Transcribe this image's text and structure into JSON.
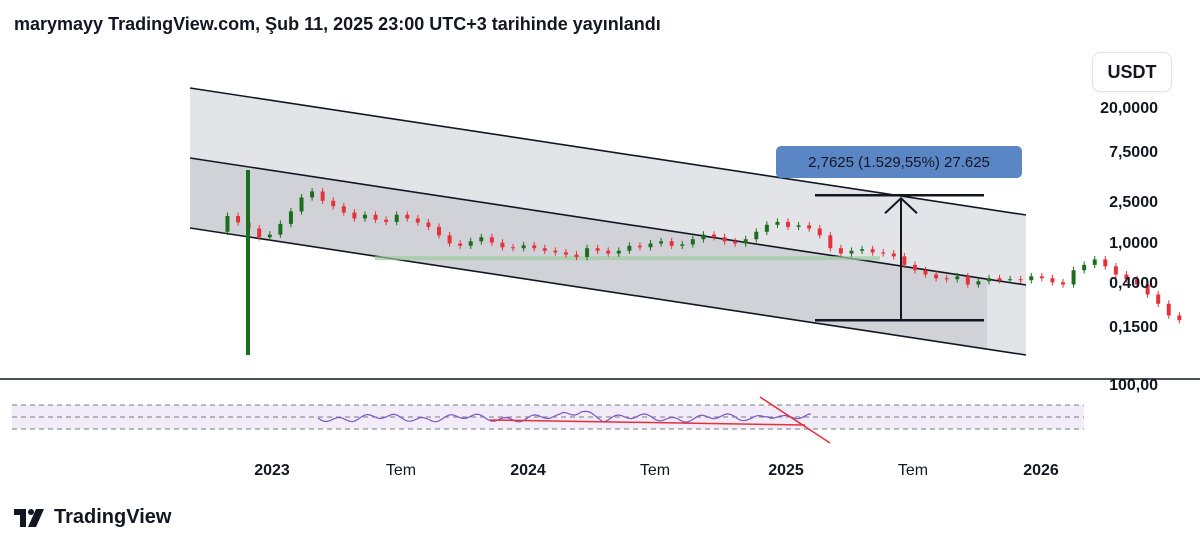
{
  "header": {
    "title": "marymayy TradingView.com, Şub 11, 2025 23:00 UTC+3 tarihinde yayınlandı"
  },
  "currency": "USDT",
  "chart_data": {
    "type": "candlestick",
    "scale": "log",
    "y_ticks": [
      "20,0000",
      "7,5000",
      "2,5000",
      "1,0000",
      "0,4000",
      "0,1500"
    ],
    "y_tick_values": [
      20,
      7.5,
      2.5,
      1.0,
      0.4,
      0.15
    ],
    "rsi_tick": "100,00",
    "x_ticks": [
      {
        "label": "2023",
        "kind": "year"
      },
      {
        "label": "Tem",
        "kind": "month"
      },
      {
        "label": "2024",
        "kind": "year"
      },
      {
        "label": "Tem",
        "kind": "month"
      },
      {
        "label": "2025",
        "kind": "year"
      },
      {
        "label": "Tem",
        "kind": "month"
      },
      {
        "label": "2026",
        "kind": "year"
      }
    ],
    "measure": {
      "label": "2,7625 (1.529,55%) 27.625",
      "from_price": 0.18,
      "to_price": 2.94
    },
    "channel": {
      "outer_upper": [
        [
          190,
          88
        ],
        [
          1026,
          215
        ]
      ],
      "inner_upper": [
        [
          190,
          158
        ],
        [
          1026,
          285
        ]
      ],
      "lower": [
        [
          190,
          228
        ],
        [
          1026,
          355
        ]
      ]
    },
    "horizontal_support_price": 0.72,
    "colors": {
      "up": "#1b6e1b",
      "down": "#e5323a",
      "channel": "#d1d4dc",
      "rsi": "#7e57c2",
      "trend": "#e5323a",
      "measure": "#5b86c6"
    },
    "series": [
      {
        "name": "candles",
        "closes": [
          1.85,
          1.6,
          1.4,
          1.15,
          1.22,
          1.55,
          2.05,
          2.8,
          3.2,
          2.6,
          2.3,
          2.0,
          1.75,
          1.9,
          1.7,
          1.62,
          1.9,
          1.75,
          1.6,
          1.45,
          1.2,
          1.0,
          0.95,
          1.05,
          1.15,
          1.02,
          0.92,
          0.9,
          0.96,
          0.9,
          0.85,
          0.82,
          0.78,
          0.74,
          0.9,
          0.85,
          0.8,
          0.85,
          0.95,
          0.92,
          1.0,
          1.05,
          0.95,
          0.98,
          1.1,
          1.22,
          1.15,
          1.05,
          1.0,
          1.1,
          1.3,
          1.52,
          1.62,
          1.45,
          1.5,
          1.4,
          1.2,
          0.9,
          0.8,
          0.85,
          0.88,
          0.82,
          0.8,
          0.75,
          0.62,
          0.55,
          0.5,
          0.46,
          0.45,
          0.48,
          0.4,
          0.43,
          0.46,
          0.44,
          0.45,
          0.44,
          0.48,
          0.46,
          0.42,
          0.4,
          0.55,
          0.62,
          0.7,
          0.6,
          0.5,
          0.45,
          0.4,
          0.32,
          0.26,
          0.2,
          0.18
        ]
      }
    ]
  },
  "footer": {
    "brand": "TradingView"
  }
}
